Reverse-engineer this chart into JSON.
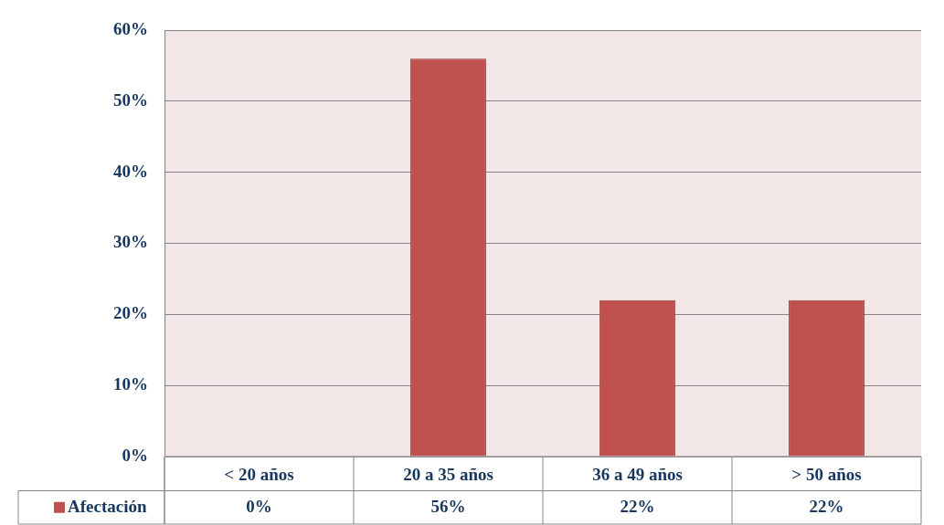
{
  "chart_data": {
    "type": "bar",
    "categories": [
      "< 20 años",
      "20 a 35 años",
      "36 a 49 años",
      "> 50 años"
    ],
    "series": [
      {
        "name": "Afectación",
        "color": "#c0504d",
        "values": [
          0,
          56,
          22,
          22
        ],
        "value_labels": [
          "0%",
          "56%",
          "22%",
          "22%"
        ]
      }
    ],
    "ylim": [
      0,
      60
    ],
    "yticks": [
      {
        "value": 0,
        "label": "0%"
      },
      {
        "value": 10,
        "label": "10%"
      },
      {
        "value": 20,
        "label": "20%"
      },
      {
        "value": 30,
        "label": "30%"
      },
      {
        "value": 40,
        "label": "40%"
      },
      {
        "value": 50,
        "label": "50%"
      },
      {
        "value": 60,
        "label": "60%"
      }
    ],
    "grid": "y",
    "legend": "bottom left"
  }
}
